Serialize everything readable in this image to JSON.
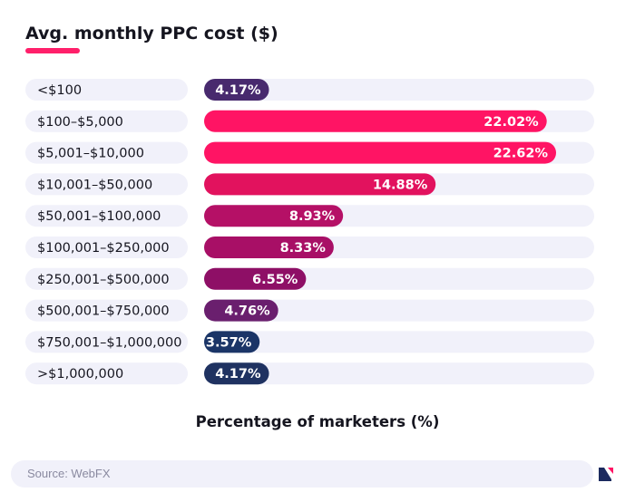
{
  "chart_data": {
    "type": "bar",
    "orientation": "horizontal",
    "title": "Avg. monthly PPC cost ($)",
    "xlabel": "Percentage of marketers (%)",
    "ylabel": "",
    "xlim": [
      0,
      25
    ],
    "grid": false,
    "categories": [
      "<$100",
      "$100–$5,000",
      "$5,001–$10,000",
      "$10,001–$50,000",
      "$50,001–$100,000",
      "$100,001–$250,000",
      "$250,001–$500,000",
      "$500,001–$750,000",
      "$750,001–$1,000,000",
      ">$1,000,000"
    ],
    "values": [
      4.17,
      22.02,
      22.62,
      14.88,
      8.93,
      8.33,
      6.55,
      4.76,
      3.57,
      4.17
    ],
    "value_labels": [
      "4.17%",
      "22.02%",
      "22.62%",
      "14.88%",
      "8.93%",
      "8.33%",
      "6.55%",
      "4.76%",
      "3.57%",
      "4.17%"
    ],
    "bar_colors": [
      "#482a6e",
      "#ff1464",
      "#ff1464",
      "#e2125e",
      "#b51066",
      "#a80f66",
      "#8e0f66",
      "#6a1f6e",
      "#1b3567",
      "#1f3261"
    ],
    "track_color": "#f1f1fa"
  },
  "source": {
    "text": "Source: WebFX"
  },
  "logo": {
    "icon": "webfx-logo-icon",
    "colors": [
      "#1b2a5e",
      "#ff1464"
    ]
  }
}
